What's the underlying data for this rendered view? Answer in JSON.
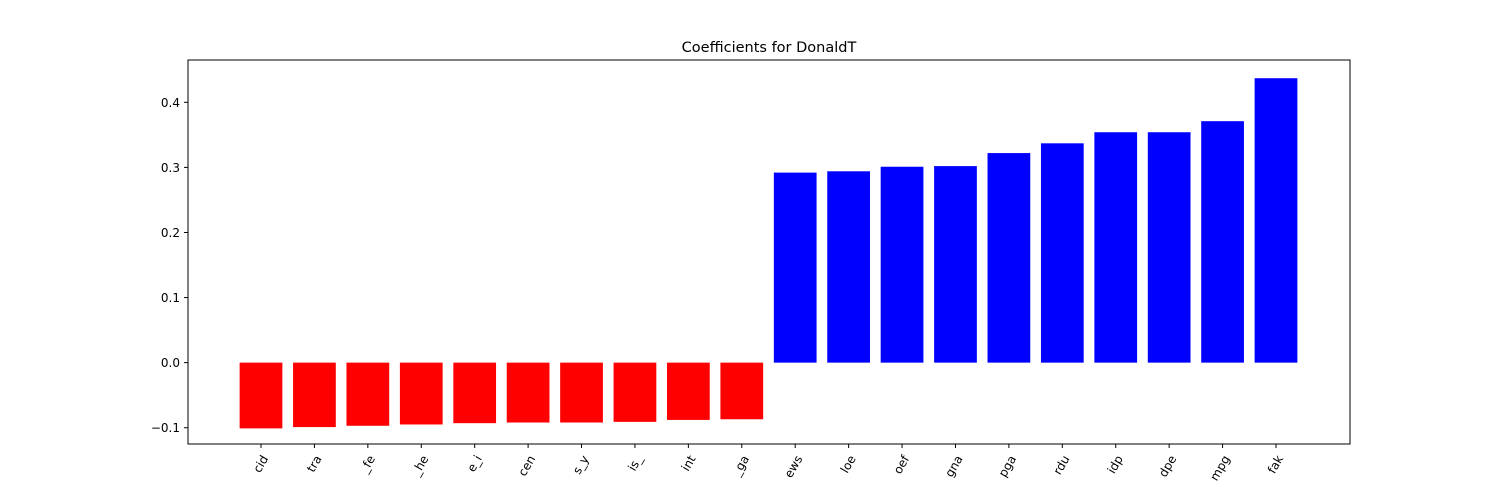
{
  "chart_data": {
    "type": "bar",
    "title": "Coefficients for DonaldT",
    "xlabel": "",
    "ylabel": "",
    "ylim": [
      -0.125,
      0.465
    ],
    "yticks": [
      -0.1,
      0.0,
      0.1,
      0.2,
      0.3,
      0.4
    ],
    "ytick_labels": [
      "−0.1",
      "0.0",
      "0.1",
      "0.2",
      "0.3",
      "0.4"
    ],
    "categories": [
      "cid",
      "tra",
      "_fe",
      "_he",
      "e_i",
      "cen",
      "s_y",
      "is_",
      "int",
      "_ga",
      "ews",
      "loe",
      "oef",
      "gna",
      "pga",
      "rdu",
      "idp",
      "dpe",
      "mpg",
      "fak"
    ],
    "values": [
      -0.101,
      -0.099,
      -0.097,
      -0.095,
      -0.093,
      -0.092,
      -0.092,
      -0.091,
      -0.088,
      -0.087,
      0.292,
      0.294,
      0.301,
      0.302,
      0.322,
      0.337,
      0.354,
      0.354,
      0.371,
      0.437
    ],
    "colors": {
      "negative": "#ff0000",
      "positive": "#0000ff"
    },
    "grid": false,
    "legend": "none"
  }
}
